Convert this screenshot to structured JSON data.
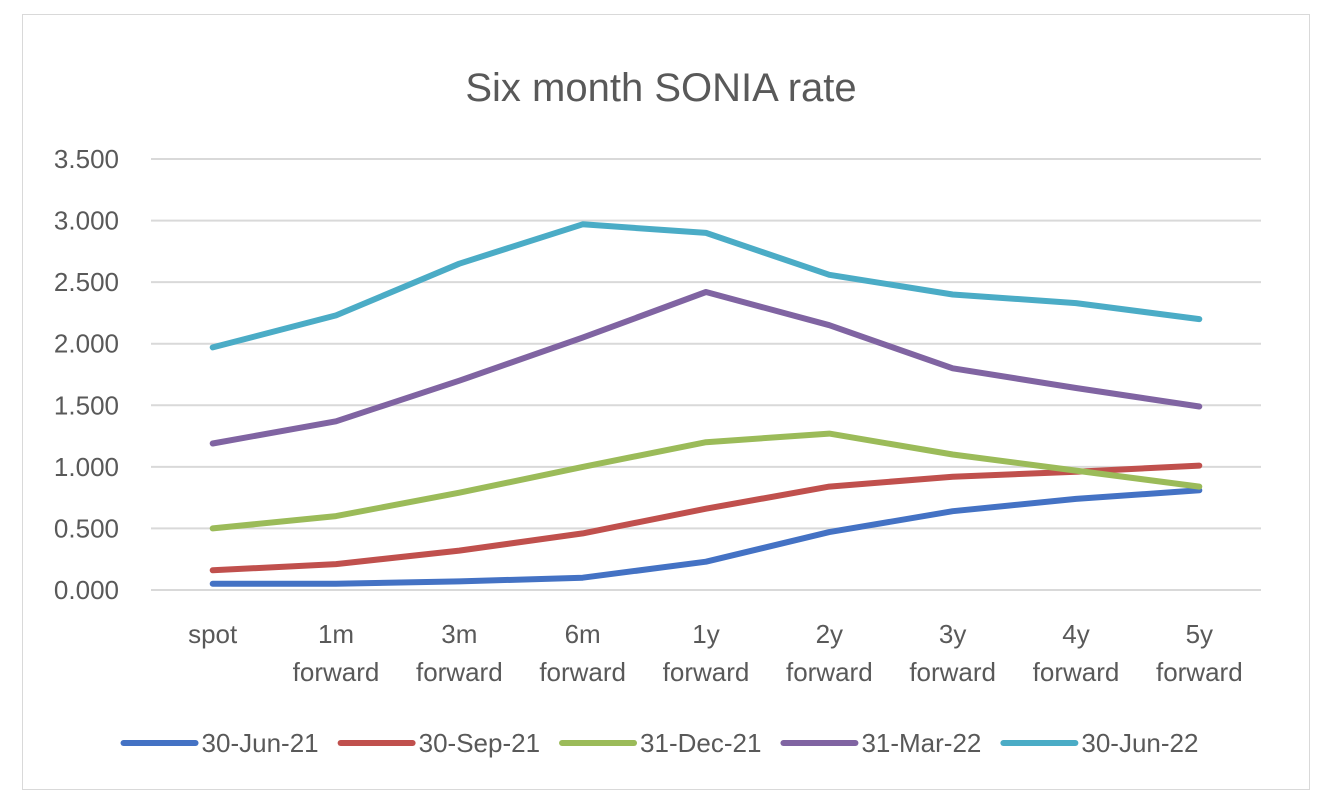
{
  "chart_data": {
    "type": "line",
    "title": "Six month SONIA rate",
    "xlabel": "",
    "ylabel": "",
    "categories": [
      [
        "spot"
      ],
      [
        "1m",
        "forward"
      ],
      [
        "3m",
        "forward"
      ],
      [
        "6m",
        "forward"
      ],
      [
        "1y",
        "forward"
      ],
      [
        "2y",
        "forward"
      ],
      [
        "3y",
        "forward"
      ],
      [
        "4y",
        "forward"
      ],
      [
        "5y",
        "forward"
      ]
    ],
    "ylim": [
      0,
      3.5
    ],
    "yticks": [
      "0.000",
      "0.500",
      "1.000",
      "1.500",
      "2.000",
      "2.500",
      "3.000",
      "3.500"
    ],
    "grid": true,
    "legend_position": "bottom",
    "series": [
      {
        "name": "30-Jun-21",
        "color": "#4472c4",
        "values": [
          0.05,
          0.05,
          0.07,
          0.1,
          0.23,
          0.47,
          0.64,
          0.74,
          0.81
        ]
      },
      {
        "name": "30-Sep-21",
        "color": "#c0504d",
        "values": [
          0.16,
          0.21,
          0.32,
          0.46,
          0.66,
          0.84,
          0.92,
          0.96,
          1.01
        ]
      },
      {
        "name": "31-Dec-21",
        "color": "#9bbb59",
        "values": [
          0.5,
          0.6,
          0.79,
          1.0,
          1.2,
          1.27,
          1.1,
          0.97,
          0.84
        ]
      },
      {
        "name": "31-Mar-22",
        "color": "#8064a2",
        "values": [
          1.19,
          1.37,
          1.7,
          2.05,
          2.42,
          2.15,
          1.8,
          1.64,
          1.49
        ]
      },
      {
        "name": "30-Jun-22",
        "color": "#4bacc6",
        "values": [
          1.97,
          2.23,
          2.65,
          2.97,
          2.9,
          2.56,
          2.4,
          2.33,
          2.2
        ]
      }
    ]
  }
}
